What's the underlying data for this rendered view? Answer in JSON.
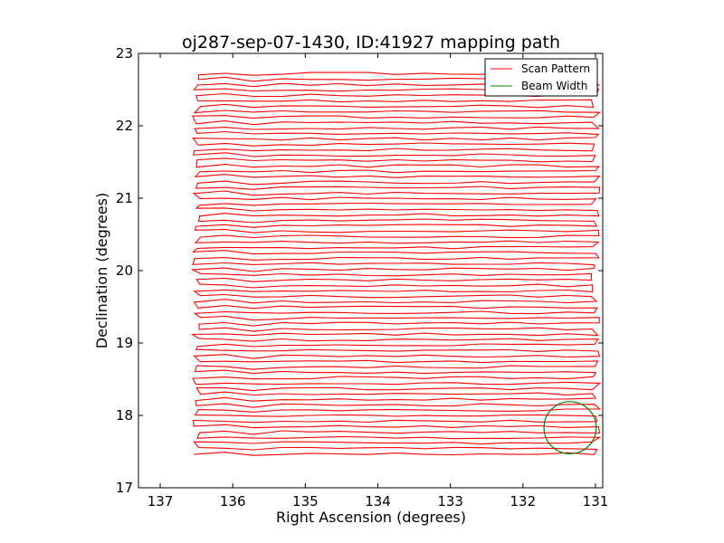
{
  "chart_data": {
    "type": "line",
    "title": "oj287-sep-07-1430, ID:41927 mapping path",
    "xlabel": "Right Ascension (degrees)",
    "ylabel": "Declination (degrees)",
    "xlim": [
      137.3,
      130.9
    ],
    "ylim": [
      17,
      23
    ],
    "xticks": [
      "137",
      "136",
      "135",
      "134",
      "133",
      "132",
      "131"
    ],
    "yticks": [
      "17",
      "18",
      "19",
      "20",
      "21",
      "22",
      "23"
    ],
    "grid": false,
    "legend": {
      "position": "upper-right",
      "entries": [
        "Scan Pattern",
        "Beam Width"
      ]
    },
    "series": [
      {
        "name": "Scan Pattern",
        "kind": "raster-scan",
        "color": "#ff0000",
        "ra_range": [
          136.5,
          131.0
        ],
        "dec_start": 17.47,
        "dec_end": 22.72,
        "row_spacing": 0.075
      },
      {
        "name": "Beam Width",
        "kind": "circle",
        "color": "#008000",
        "center_ra": 131.35,
        "center_dec": 17.83,
        "radius": 0.36
      }
    ]
  }
}
